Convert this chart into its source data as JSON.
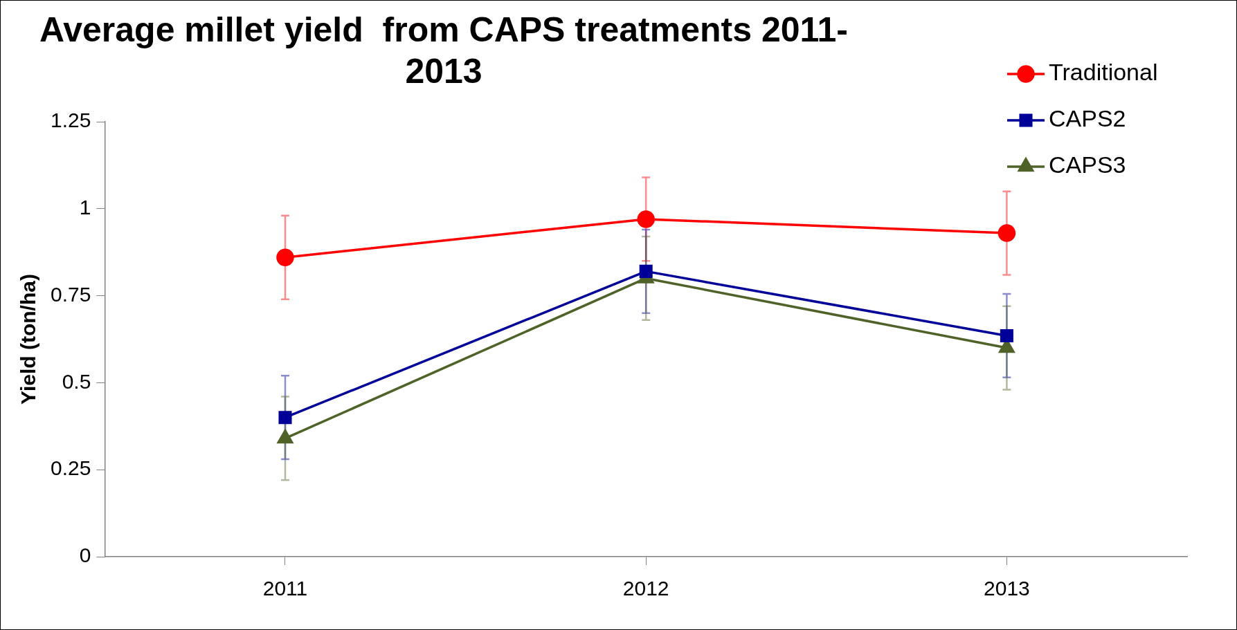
{
  "chart_data": {
    "type": "line",
    "title": "Average millet yield  from CAPS treatments 2011-2013",
    "ylabel": "Yield (ton/ha)",
    "categories": [
      "2011",
      "2012",
      "2013"
    ],
    "series": [
      {
        "name": "Traditional",
        "color": "#ff0000",
        "marker": "circle",
        "values": [
          0.86,
          0.97,
          0.93
        ],
        "errors": [
          0.12,
          0.12,
          0.12
        ]
      },
      {
        "name": "CAPS2",
        "color": "#000099",
        "marker": "square",
        "values": [
          0.4,
          0.82,
          0.635
        ],
        "errors": [
          0.12,
          0.12,
          0.12
        ]
      },
      {
        "name": "CAPS3",
        "color": "#4f6228",
        "marker": "triangle",
        "values": [
          0.34,
          0.8,
          0.6
        ],
        "errors": [
          0.12,
          0.12,
          0.12
        ]
      }
    ],
    "ylim": [
      0,
      1.25
    ],
    "yticks": [
      0,
      0.25,
      0.5,
      0.75,
      1,
      1.25
    ],
    "grid": false,
    "legend": "top right",
    "line_style": "solid"
  }
}
